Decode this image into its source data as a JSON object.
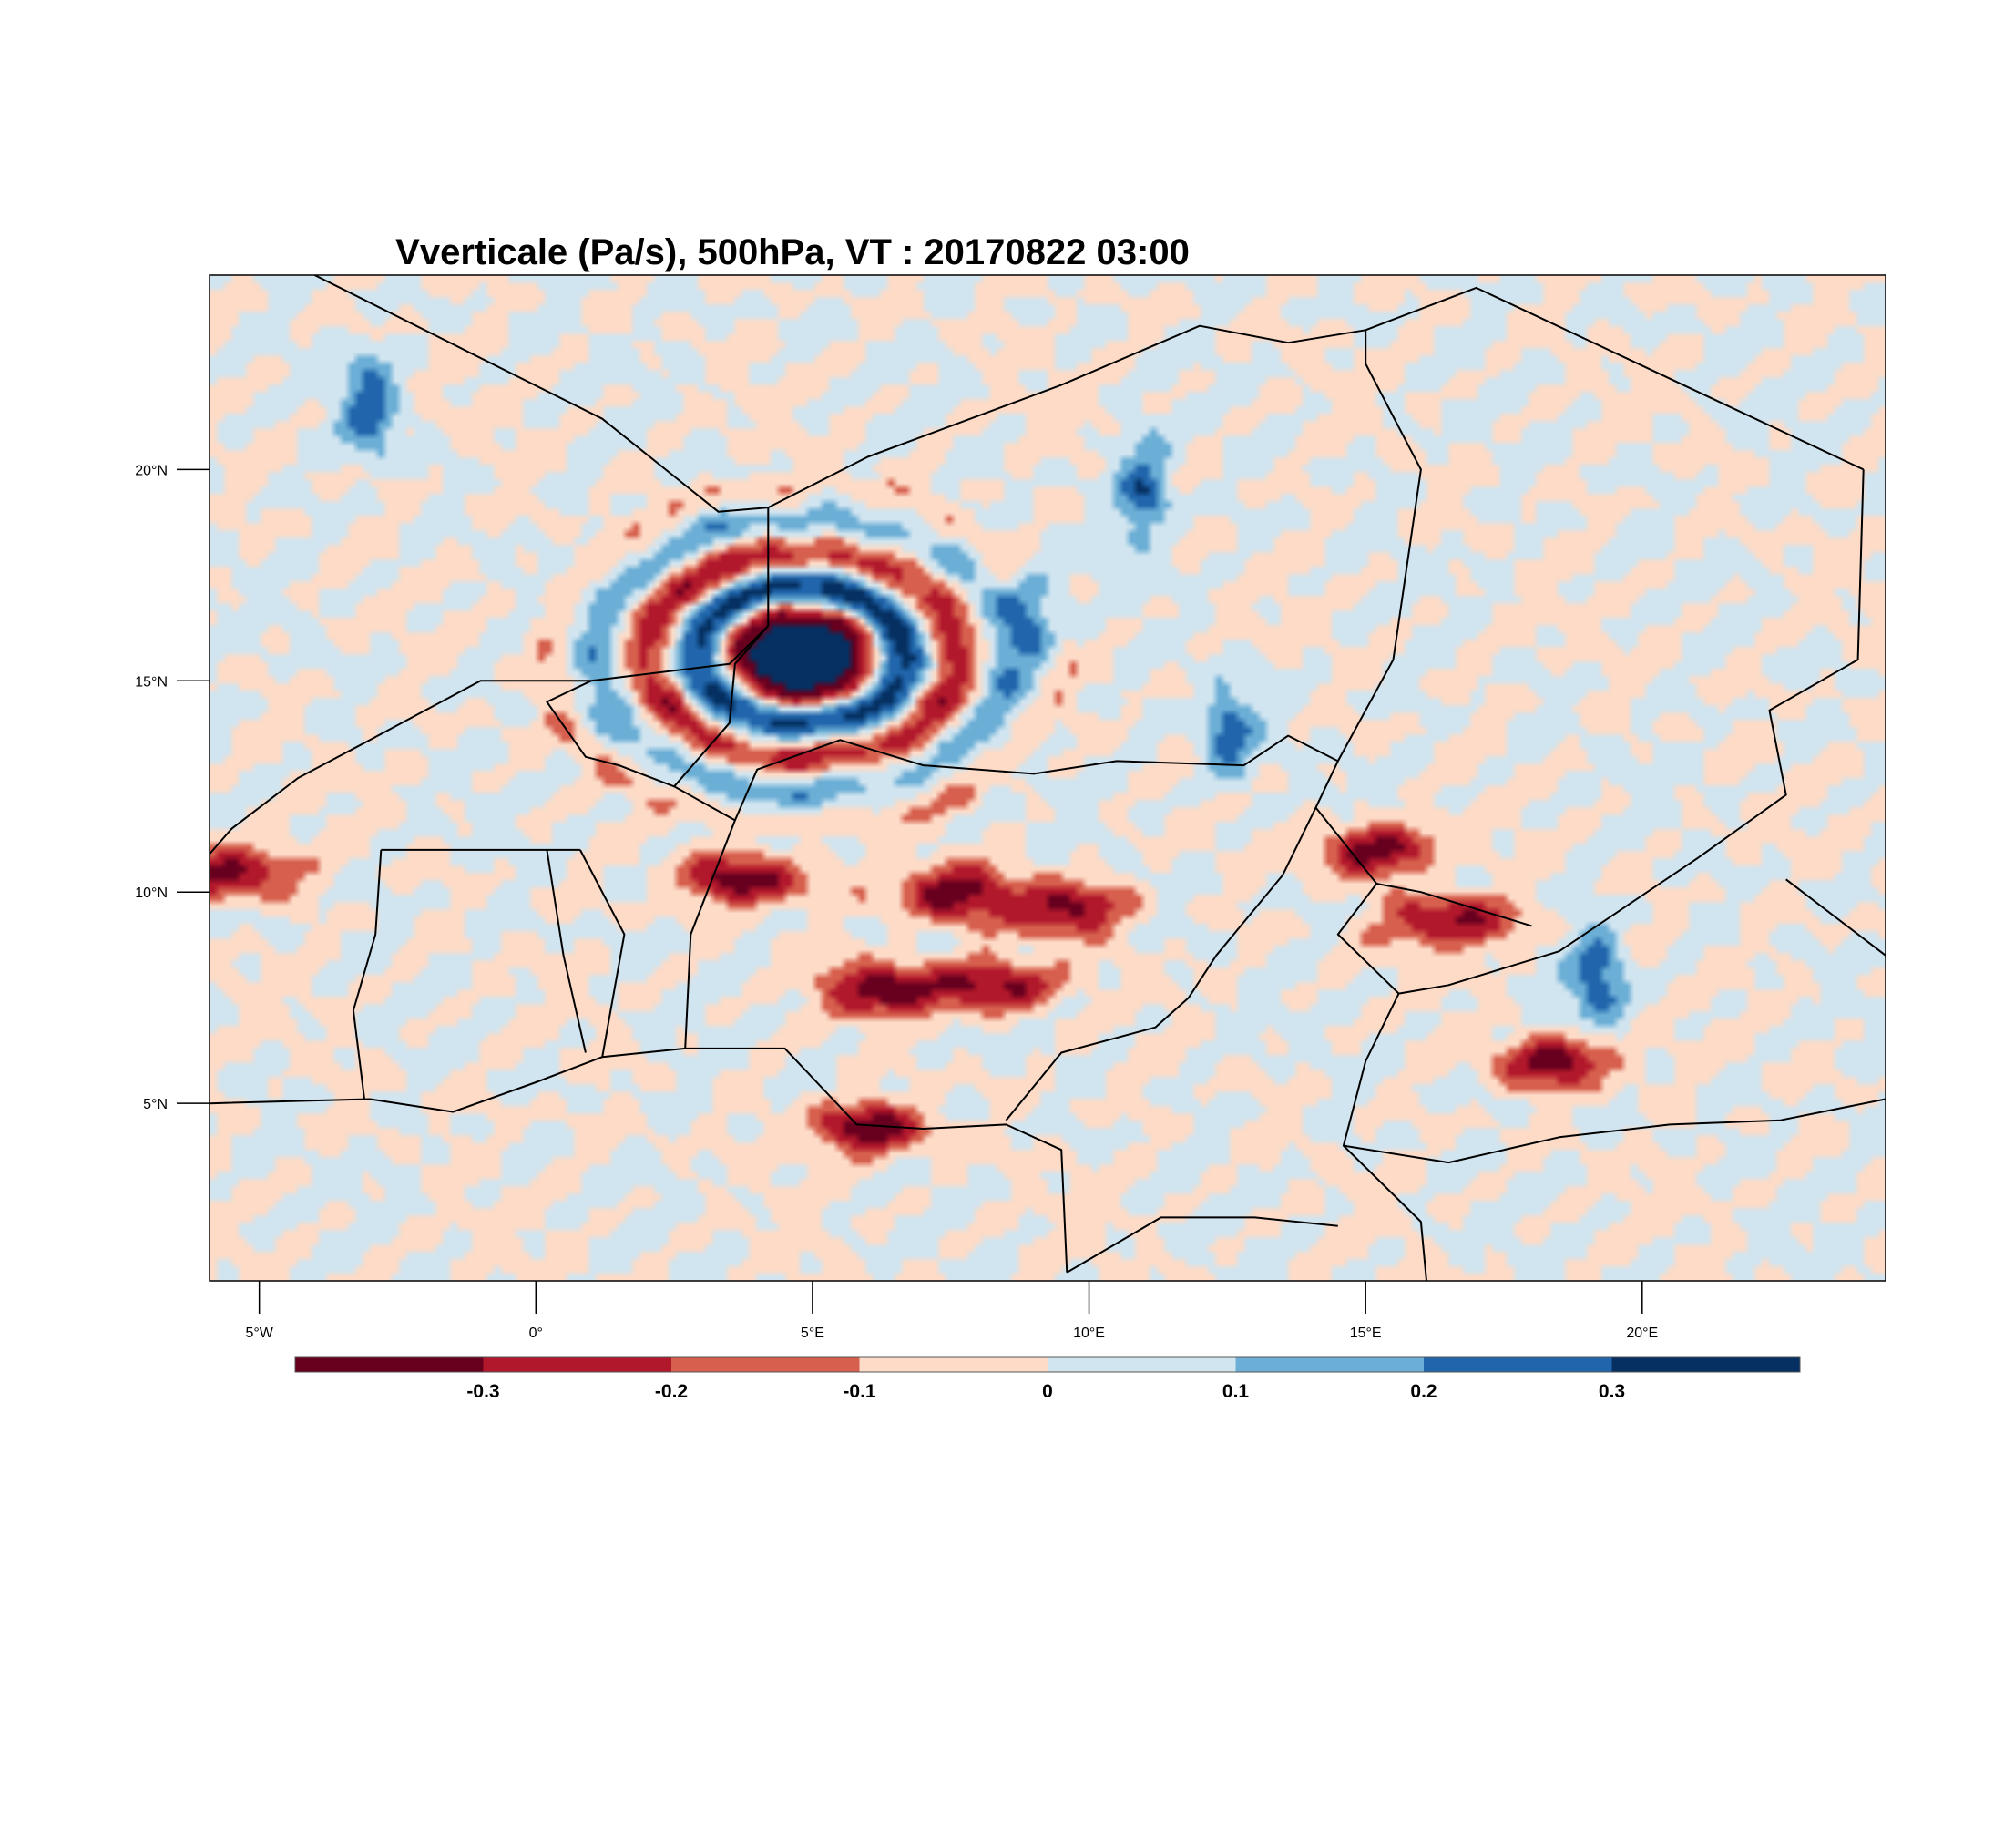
{
  "map": {
    "title": "Vverticale (Pa/s), 500hPa, VT : 20170822  03:00",
    "lat_range": [
      0.8,
      24.6
    ],
    "lon_range": [
      -5.9,
      24.4
    ],
    "lat_ticks": [
      {
        "value": 20,
        "label": "20°N"
      },
      {
        "value": 15,
        "label": "15°N"
      },
      {
        "value": 10,
        "label": "10°N"
      },
      {
        "value": 5,
        "label": "5°N"
      }
    ],
    "lon_ticks": [
      {
        "value": -5,
        "label": "5°W"
      },
      {
        "value": 0,
        "label": "0°"
      },
      {
        "value": 5,
        "label": "5°E"
      },
      {
        "value": 10,
        "label": "10°E"
      },
      {
        "value": 15,
        "label": "15°E"
      },
      {
        "value": 20,
        "label": "20°E"
      }
    ],
    "features": {
      "cyclone_center": {
        "lon": 4.8,
        "lat": 15.6
      },
      "ascent_blobs_lon_lat": [
        [
          7.5,
          10.0
        ],
        [
          8.3,
          7.8
        ],
        [
          9.5,
          9.6
        ],
        [
          16.5,
          9.3
        ],
        [
          15.2,
          11.0
        ],
        [
          18.5,
          6.0
        ],
        [
          -5.5,
          10.5
        ],
        [
          3.8,
          10.3
        ],
        [
          6.3,
          7.7
        ],
        [
          6.0,
          4.4
        ]
      ],
      "subsidence_streaks_lon_lat": [
        [
          9.0,
          16.5
        ],
        [
          12.5,
          13.8
        ],
        [
          19.2,
          8.0
        ],
        [
          -3.0,
          21.5
        ],
        [
          11.0,
          19.5
        ]
      ]
    }
  },
  "colorbar": {
    "colors": [
      "#67001f",
      "#b2182b",
      "#d6604d",
      "#fddbc7",
      "#d1e5f0",
      "#6baed6",
      "#2166ac",
      "#053061"
    ],
    "levels": [
      -0.3,
      -0.2,
      -0.1,
      0,
      0.1,
      0.2,
      0.3
    ],
    "labels": [
      "-0.3",
      "-0.2",
      "-0.1",
      "0",
      "0.1",
      "0.2",
      "0.3"
    ]
  }
}
